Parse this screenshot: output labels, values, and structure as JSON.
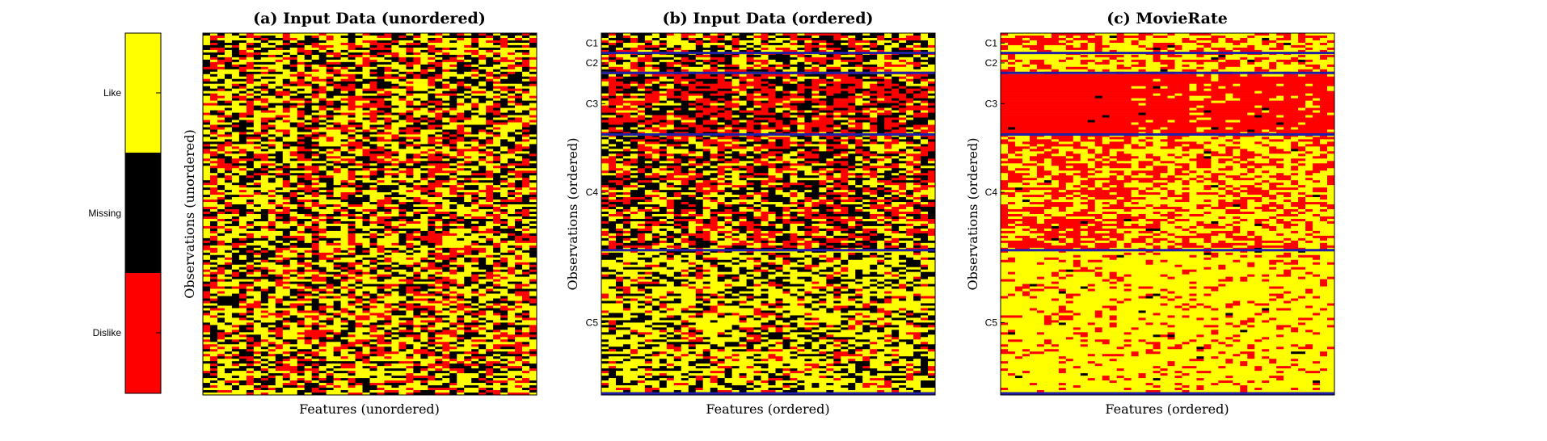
{
  "colorbar": {
    "labels": [
      "Like",
      "Missing",
      "Dislike"
    ],
    "colors": [
      "#ffff00",
      "#000000",
      "#ff0000"
    ]
  },
  "boundary_color": "#1f1fa8",
  "chart_data": [
    {
      "type": "heatmap",
      "title": "(a) Input Data (unordered)",
      "xlabel": "Features (unordered)",
      "ylabel": "Observations (unordered)",
      "clusters": [],
      "pattern": "unordered"
    },
    {
      "type": "heatmap",
      "title": "(b) Input Data (ordered)",
      "xlabel": "Features (ordered)",
      "ylabel": "Observations (ordered)",
      "clusters": [
        "C1",
        "C2",
        "C3",
        "C4",
        "C5"
      ],
      "pattern": "ordered-input"
    },
    {
      "type": "heatmap",
      "title": "(c) MovieRate",
      "xlabel": "Features (ordered)",
      "ylabel": "Observations (ordered)",
      "clusters": [
        "C1",
        "C2",
        "C3",
        "C4",
        "C5"
      ],
      "pattern": "completed"
    }
  ]
}
